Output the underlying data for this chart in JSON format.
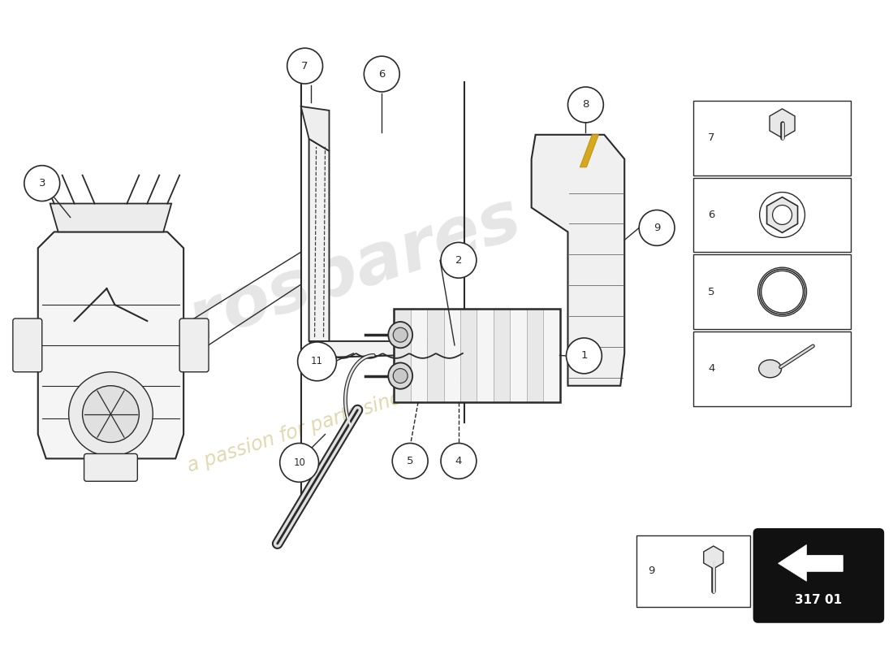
{
  "bg_color": "#ffffff",
  "line_color": "#2a2a2a",
  "watermark_color1": "#c0c0c0",
  "watermark_color2": "#c8b870",
  "catalog_code": "317 01",
  "sidebar_items": [
    "7",
    "6",
    "5",
    "4"
  ],
  "figsize": [
    11.0,
    8.0
  ],
  "dpi": 100
}
